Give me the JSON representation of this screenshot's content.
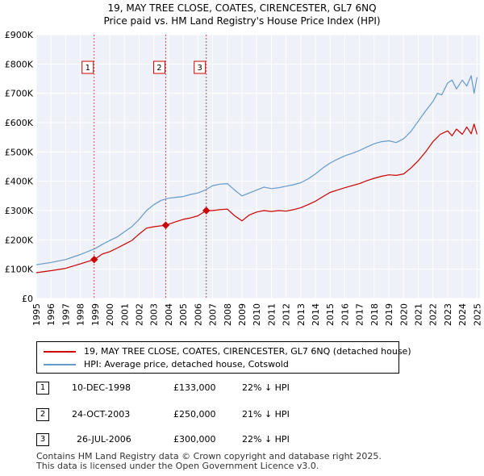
{
  "header": {
    "title_line1": "19, MAY TREE CLOSE, COATES, CIRENCESTER, GL7 6NQ",
    "title_line2": "Price paid vs. HM Land Registry's House Price Index (HPI)"
  },
  "chart_data": {
    "type": "line",
    "xlim": [
      1995,
      2025.2
    ],
    "ylim": [
      0,
      900000
    ],
    "yticks": [
      {
        "value": 0,
        "label": "£0"
      },
      {
        "value": 100000,
        "label": "£100K"
      },
      {
        "value": 200000,
        "label": "£200K"
      },
      {
        "value": 300000,
        "label": "£300K"
      },
      {
        "value": 400000,
        "label": "£400K"
      },
      {
        "value": 500000,
        "label": "£500K"
      },
      {
        "value": 600000,
        "label": "£600K"
      },
      {
        "value": 700000,
        "label": "£700K"
      },
      {
        "value": 800000,
        "label": "£800K"
      },
      {
        "value": 900000,
        "label": "£900K"
      }
    ],
    "xticks": [
      "1995",
      "1996",
      "1997",
      "1998",
      "1999",
      "2000",
      "2001",
      "2002",
      "2003",
      "2004",
      "2005",
      "2006",
      "2007",
      "2008",
      "2009",
      "2010",
      "2011",
      "2012",
      "2013",
      "2014",
      "2015",
      "2016",
      "2017",
      "2018",
      "2019",
      "2020",
      "2021",
      "2022",
      "2023",
      "2024",
      "2025"
    ],
    "grid": true,
    "series": [
      {
        "name": "19, MAY TREE CLOSE, COATES, CIRENCESTER, GL7 6NQ (detached house)",
        "color": "#cc0000",
        "x": [
          1995.0,
          1996.0,
          1997.0,
          1998.0,
          1998.94,
          1999.5,
          2000.0,
          2000.5,
          2001.0,
          2001.5,
          2002.0,
          2002.5,
          2003.0,
          2003.81,
          2004.5,
          2005.0,
          2005.5,
          2006.0,
          2006.57,
          2007.0,
          2007.5,
          2008.0,
          2008.5,
          2009.0,
          2009.5,
          2010.0,
          2010.5,
          2011.0,
          2011.5,
          2012.0,
          2012.5,
          2013.0,
          2013.5,
          2014.0,
          2014.5,
          2015.0,
          2015.5,
          2016.0,
          2016.5,
          2017.0,
          2017.5,
          2018.0,
          2018.5,
          2019.0,
          2019.5,
          2020.0,
          2020.5,
          2021.0,
          2021.5,
          2022.0,
          2022.5,
          2023.0,
          2023.3,
          2023.6,
          2024.0,
          2024.3,
          2024.6,
          2024.8,
          2025.0
        ],
        "y": [
          88000,
          95000,
          103000,
          118000,
          133000,
          152000,
          160000,
          172000,
          185000,
          198000,
          220000,
          240000,
          245000,
          250000,
          262000,
          270000,
          275000,
          282000,
          300000,
          300000,
          303000,
          305000,
          282000,
          265000,
          285000,
          295000,
          300000,
          297000,
          300000,
          298000,
          303000,
          310000,
          320000,
          332000,
          347000,
          362000,
          370000,
          378000,
          385000,
          392000,
          402000,
          410000,
          417000,
          422000,
          420000,
          425000,
          445000,
          470000,
          500000,
          535000,
          560000,
          572000,
          555000,
          578000,
          560000,
          585000,
          562000,
          595000,
          560000
        ]
      },
      {
        "name": "HPI: Average price, detached house, Cotswold",
        "color": "#6699cc",
        "x": [
          1995.0,
          1996.0,
          1997.0,
          1998.0,
          1999.0,
          1999.5,
          2000.0,
          2000.5,
          2001.0,
          2001.5,
          2002.0,
          2002.5,
          2003.0,
          2003.5,
          2004.0,
          2004.5,
          2005.0,
          2005.5,
          2006.0,
          2006.5,
          2007.0,
          2007.5,
          2008.0,
          2008.5,
          2009.0,
          2009.5,
          2010.0,
          2010.5,
          2011.0,
          2011.5,
          2012.0,
          2012.5,
          2013.0,
          2013.5,
          2014.0,
          2014.5,
          2015.0,
          2015.5,
          2016.0,
          2016.5,
          2017.0,
          2017.5,
          2018.0,
          2018.5,
          2019.0,
          2019.5,
          2020.0,
          2020.5,
          2021.0,
          2021.5,
          2022.0,
          2022.3,
          2022.6,
          2023.0,
          2023.3,
          2023.6,
          2024.0,
          2024.3,
          2024.6,
          2024.8,
          2025.0
        ],
        "y": [
          115000,
          123000,
          133000,
          150000,
          170000,
          185000,
          198000,
          210000,
          228000,
          245000,
          270000,
          300000,
          320000,
          335000,
          342000,
          345000,
          348000,
          355000,
          360000,
          370000,
          385000,
          390000,
          392000,
          370000,
          350000,
          360000,
          370000,
          380000,
          375000,
          378000,
          383000,
          388000,
          395000,
          408000,
          425000,
          445000,
          462000,
          475000,
          487000,
          495000,
          505000,
          517000,
          528000,
          535000,
          538000,
          532000,
          545000,
          570000,
          605000,
          640000,
          672000,
          700000,
          695000,
          735000,
          745000,
          715000,
          745000,
          725000,
          760000,
          700000,
          755000
        ]
      }
    ],
    "sales": [
      {
        "num": "1",
        "date": "10-DEC-1998",
        "price": "£133,000",
        "hpi": "22% ↓ HPI",
        "x": 1998.94,
        "y": 133000
      },
      {
        "num": "2",
        "date": "24-OCT-2003",
        "price": "£250,000",
        "hpi": "21% ↓ HPI",
        "x": 2003.81,
        "y": 250000
      },
      {
        "num": "3",
        "date": "26-JUL-2006",
        "price": "£300,000",
        "hpi": "22% ↓ HPI",
        "x": 2006.57,
        "y": 300000
      }
    ]
  },
  "legend": {
    "property_label": "19, MAY TREE CLOSE, COATES, CIRENCESTER, GL7 6NQ (detached house)",
    "hpi_label": "HPI: Average price, detached house, Cotswold",
    "property_color": "#cc0000",
    "hpi_color": "#6699cc"
  },
  "footer": {
    "line1": "Contains HM Land Registry data © Crown copyright and database right 2025.",
    "line2": "This data is licensed under the Open Government Licence v3.0."
  }
}
